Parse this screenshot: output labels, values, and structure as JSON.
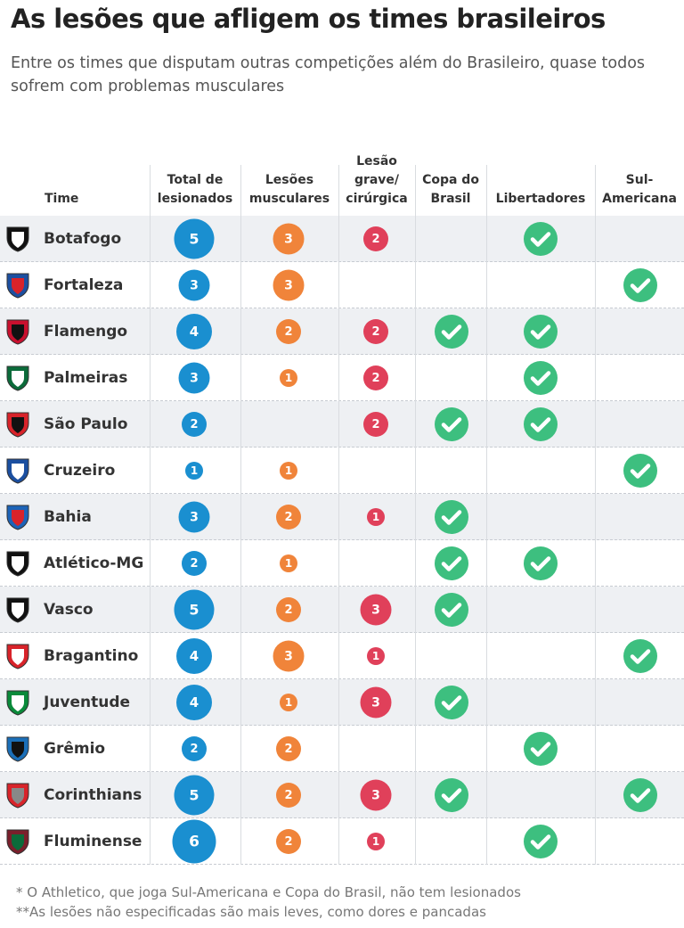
{
  "title": "As lesões que afligem os times brasileiros",
  "subtitle": "Entre os times que disputam outras competições além do Brasileiro, quase todos sofrem com problemas musculares",
  "footnotes": [
    "* O Athletico, que joga Sul-Americana e Copa do Brasil, não tem lesionados",
    "**As lesões não especificadas são mais leves, como dores e pancadas"
  ],
  "colors": {
    "total": "#1a8fd0",
    "musculares": "#f0843a",
    "grave": "#e0405a",
    "check": "#3dbf7f",
    "row_alt": "#eef0f3"
  },
  "chart_data": {
    "type": "table",
    "columns": [
      "Time",
      "Total de lesionados",
      "Lesões musculares",
      "Lesão grave/ cirúrgica",
      "Copa do Brasil",
      "Libertadores",
      "Sul-Americana"
    ],
    "rows": [
      {
        "team": "Botafogo",
        "total": 5,
        "musculares": 3,
        "grave": 2,
        "copa": false,
        "libertadores": true,
        "sul": false,
        "logo_colors": [
          "#111111",
          "#ffffff"
        ]
      },
      {
        "team": "Fortaleza",
        "total": 3,
        "musculares": 3,
        "grave": null,
        "copa": false,
        "libertadores": false,
        "sul": true,
        "logo_colors": [
          "#1c4fa0",
          "#d8232a"
        ]
      },
      {
        "team": "Flamengo",
        "total": 4,
        "musculares": 2,
        "grave": 2,
        "copa": true,
        "libertadores": true,
        "sul": false,
        "logo_colors": [
          "#c8102e",
          "#111111"
        ]
      },
      {
        "team": "Palmeiras",
        "total": 3,
        "musculares": 1,
        "grave": 2,
        "copa": false,
        "libertadores": true,
        "sul": false,
        "logo_colors": [
          "#0b6b3a",
          "#ffffff"
        ]
      },
      {
        "team": "São Paulo",
        "total": 2,
        "musculares": null,
        "grave": 2,
        "copa": true,
        "libertadores": true,
        "sul": false,
        "logo_colors": [
          "#d8232a",
          "#111111"
        ]
      },
      {
        "team": "Cruzeiro",
        "total": 1,
        "musculares": 1,
        "grave": null,
        "copa": false,
        "libertadores": false,
        "sul": true,
        "logo_colors": [
          "#1b4fa0",
          "#ffffff"
        ]
      },
      {
        "team": "Bahia",
        "total": 3,
        "musculares": 2,
        "grave": 1,
        "copa": true,
        "libertadores": false,
        "sul": false,
        "logo_colors": [
          "#1c63b7",
          "#d8232a"
        ]
      },
      {
        "team": "Atlético-MG",
        "total": 2,
        "musculares": 1,
        "grave": null,
        "copa": true,
        "libertadores": true,
        "sul": false,
        "logo_colors": [
          "#111111",
          "#ffffff"
        ]
      },
      {
        "team": "Vasco",
        "total": 5,
        "musculares": 2,
        "grave": 3,
        "copa": true,
        "libertadores": false,
        "sul": false,
        "logo_colors": [
          "#111111",
          "#ffffff"
        ]
      },
      {
        "team": "Bragantino",
        "total": 4,
        "musculares": 3,
        "grave": 1,
        "copa": false,
        "libertadores": false,
        "sul": true,
        "logo_colors": [
          "#d8232a",
          "#ffffff"
        ]
      },
      {
        "team": "Juventude",
        "total": 4,
        "musculares": 1,
        "grave": 3,
        "copa": true,
        "libertadores": false,
        "sul": false,
        "logo_colors": [
          "#0a8a3a",
          "#ffffff"
        ]
      },
      {
        "team": "Grêmio",
        "total": 2,
        "musculares": 2,
        "grave": null,
        "copa": false,
        "libertadores": true,
        "sul": false,
        "logo_colors": [
          "#1b6fb8",
          "#111111"
        ]
      },
      {
        "team": "Corinthians",
        "total": 5,
        "musculares": 2,
        "grave": 3,
        "copa": true,
        "libertadores": false,
        "sul": true,
        "logo_colors": [
          "#d8232a",
          "#888888"
        ]
      },
      {
        "team": "Fluminense",
        "total": 6,
        "musculares": 2,
        "grave": 1,
        "copa": false,
        "libertadores": true,
        "sul": false,
        "logo_colors": [
          "#7a1f2b",
          "#0b6b3a"
        ]
      }
    ]
  }
}
